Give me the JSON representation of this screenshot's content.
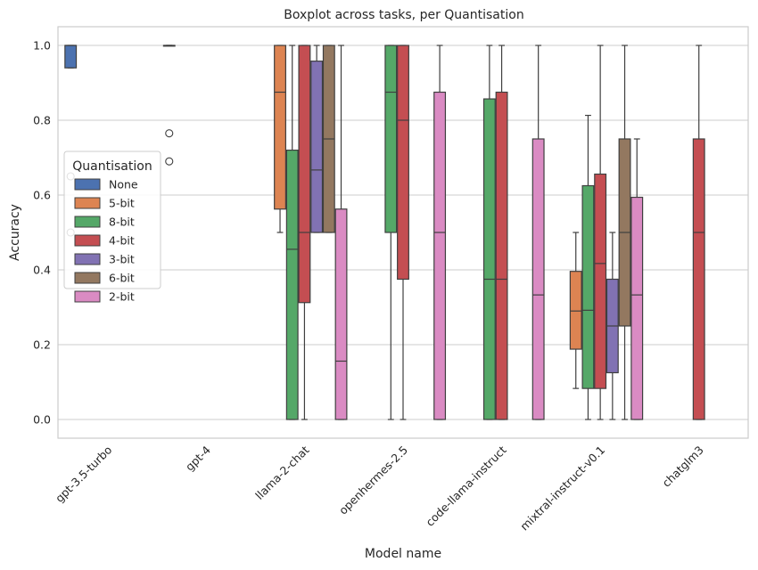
{
  "chart_data": {
    "type": "boxplot",
    "title": "Boxplot across tasks, per Quantisation",
    "xlabel": "Model name",
    "ylabel": "Accuracy",
    "ylim": [
      -0.05,
      1.05
    ],
    "yticks": [
      "0.0",
      "0.2",
      "0.4",
      "0.6",
      "0.8",
      "1.0"
    ],
    "grid": true,
    "categories": [
      "gpt-3.5-turbo",
      "gpt-4",
      "llama-2-chat",
      "openhermes-2.5",
      "code-llama-instruct",
      "mixtral-instruct-v0.1",
      "chatglm3"
    ],
    "legend": {
      "title": "Quantisation",
      "placement": "center-left",
      "entries": [
        "None",
        "5-bit",
        "8-bit",
        "4-bit",
        "3-bit",
        "6-bit",
        "2-bit"
      ]
    },
    "colors": {
      "None": "#4c72b0",
      "5-bit": "#dd8452",
      "8-bit": "#55a868",
      "4-bit": "#c44e52",
      "3-bit": "#8172b3",
      "6-bit": "#937860",
      "2-bit": "#da8bc3"
    },
    "boxes": [
      {
        "category": "gpt-3.5-turbo",
        "series": "None",
        "whislo": 0.94,
        "q1": 0.94,
        "med": 1.0,
        "q3": 1.0,
        "whishi": 1.0,
        "fliers": [
          0.65,
          0.5
        ]
      },
      {
        "category": "gpt-4",
        "series": "None",
        "whislo": 1.0,
        "q1": 1.0,
        "med": 1.0,
        "q3": 1.0,
        "whishi": 1.0,
        "fliers": [
          0.765,
          0.69
        ]
      },
      {
        "category": "llama-2-chat",
        "series": "5-bit",
        "whislo": 0.5,
        "q1": 0.5625,
        "med": 0.875,
        "q3": 1.0,
        "whishi": 1.0,
        "fliers": []
      },
      {
        "category": "llama-2-chat",
        "series": "8-bit",
        "whislo": 0.0,
        "q1": 0.0,
        "med": 0.455,
        "q3": 0.72,
        "whishi": 1.0,
        "fliers": []
      },
      {
        "category": "llama-2-chat",
        "series": "4-bit",
        "whislo": 0.0,
        "q1": 0.3125,
        "med": 0.5,
        "q3": 1.0,
        "whishi": 1.0,
        "fliers": []
      },
      {
        "category": "llama-2-chat",
        "series": "3-bit",
        "whislo": 0.5,
        "q1": 0.5,
        "med": 0.667,
        "q3": 0.958,
        "whishi": 1.0,
        "fliers": []
      },
      {
        "category": "llama-2-chat",
        "series": "6-bit",
        "whislo": 0.5,
        "q1": 0.5,
        "med": 0.75,
        "q3": 1.0,
        "whishi": 1.0,
        "fliers": []
      },
      {
        "category": "llama-2-chat",
        "series": "2-bit",
        "whislo": 0.0,
        "q1": 0.0,
        "med": 0.156,
        "q3": 0.5625,
        "whishi": 1.0,
        "fliers": []
      },
      {
        "category": "openhermes-2.5",
        "series": "8-bit",
        "whislo": 0.0,
        "q1": 0.5,
        "med": 0.875,
        "q3": 1.0,
        "whishi": 1.0,
        "fliers": []
      },
      {
        "category": "openhermes-2.5",
        "series": "4-bit",
        "whislo": 0.0,
        "q1": 0.375,
        "med": 0.8,
        "q3": 1.0,
        "whishi": 1.0,
        "fliers": []
      },
      {
        "category": "openhermes-2.5",
        "series": "2-bit",
        "whislo": 0.0,
        "q1": 0.0,
        "med": 0.5,
        "q3": 0.875,
        "whishi": 1.0,
        "fliers": []
      },
      {
        "category": "code-llama-instruct",
        "series": "8-bit",
        "whislo": 0.0,
        "q1": 0.0,
        "med": 0.375,
        "q3": 0.857,
        "whishi": 1.0,
        "fliers": []
      },
      {
        "category": "code-llama-instruct",
        "series": "4-bit",
        "whislo": 0.0,
        "q1": 0.0,
        "med": 0.375,
        "q3": 0.875,
        "whishi": 1.0,
        "fliers": []
      },
      {
        "category": "code-llama-instruct",
        "series": "2-bit",
        "whislo": 0.0,
        "q1": 0.0,
        "med": 0.333,
        "q3": 0.75,
        "whishi": 1.0,
        "fliers": []
      },
      {
        "category": "mixtral-instruct-v0.1",
        "series": "5-bit",
        "whislo": 0.083,
        "q1": 0.188,
        "med": 0.29,
        "q3": 0.396,
        "whishi": 0.5,
        "fliers": []
      },
      {
        "category": "mixtral-instruct-v0.1",
        "series": "8-bit",
        "whislo": 0.0,
        "q1": 0.083,
        "med": 0.292,
        "q3": 0.625,
        "whishi": 0.813,
        "fliers": []
      },
      {
        "category": "mixtral-instruct-v0.1",
        "series": "4-bit",
        "whislo": 0.0,
        "q1": 0.083,
        "med": 0.417,
        "q3": 0.656,
        "whishi": 1.0,
        "fliers": []
      },
      {
        "category": "mixtral-instruct-v0.1",
        "series": "3-bit",
        "whislo": 0.0,
        "q1": 0.125,
        "med": 0.25,
        "q3": 0.375,
        "whishi": 0.5,
        "fliers": []
      },
      {
        "category": "mixtral-instruct-v0.1",
        "series": "6-bit",
        "whislo": 0.0,
        "q1": 0.25,
        "med": 0.5,
        "q3": 0.75,
        "whishi": 1.0,
        "fliers": []
      },
      {
        "category": "mixtral-instruct-v0.1",
        "series": "2-bit",
        "whislo": 0.0,
        "q1": 0.0,
        "med": 0.333,
        "q3": 0.594,
        "whishi": 0.75,
        "fliers": []
      },
      {
        "category": "chatglm3",
        "series": "4-bit",
        "whislo": 0.0,
        "q1": 0.0,
        "med": 0.5,
        "q3": 0.75,
        "whishi": 1.0,
        "fliers": []
      }
    ]
  }
}
